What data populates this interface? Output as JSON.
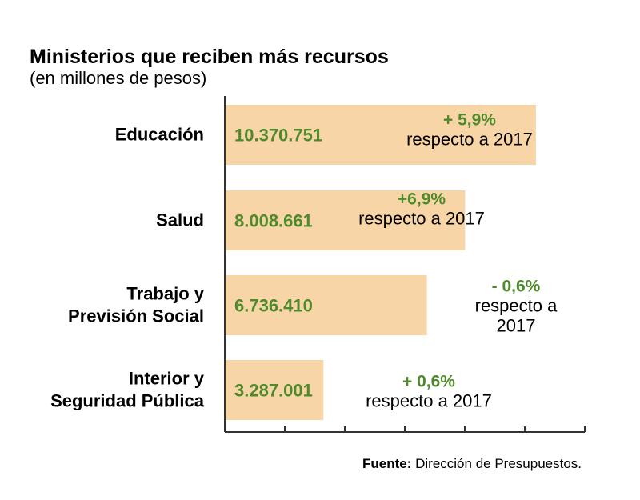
{
  "chart_data": {
    "type": "bar",
    "orientation": "horizontal",
    "title": "Ministerios que reciben más recursos",
    "subtitle": "(en millones de pesos)",
    "categories": [
      [
        "Educación"
      ],
      [
        "Salud"
      ],
      [
        "Trabajo y",
        "Previsión Social"
      ],
      [
        "Interior y",
        "Seguridad Pública"
      ]
    ],
    "values": [
      10370751,
      8008661,
      6736410,
      3287001
    ],
    "value_labels": [
      "10.370.751",
      "8.008.661",
      "6.736.410",
      "3.287.001"
    ],
    "changes": [
      [
        "+ 5,9%",
        "respecto a 2017"
      ],
      [
        "+6,9%",
        "respecto a 2017"
      ],
      [
        "- 0,6%",
        "respecto a",
        "2017"
      ],
      [
        "+ 0,6%",
        "respecto a 2017"
      ]
    ],
    "xlim": [
      0,
      12000000
    ],
    "x_ticks": 6,
    "grid": false,
    "colors": {
      "bar": "#f8d5a6",
      "value_text": "#4e8a2c",
      "change_text": "#4e8a2c",
      "axis": "#333333"
    }
  },
  "source": {
    "label": "Fuente:",
    "text": " Dirección de Presupuestos."
  }
}
